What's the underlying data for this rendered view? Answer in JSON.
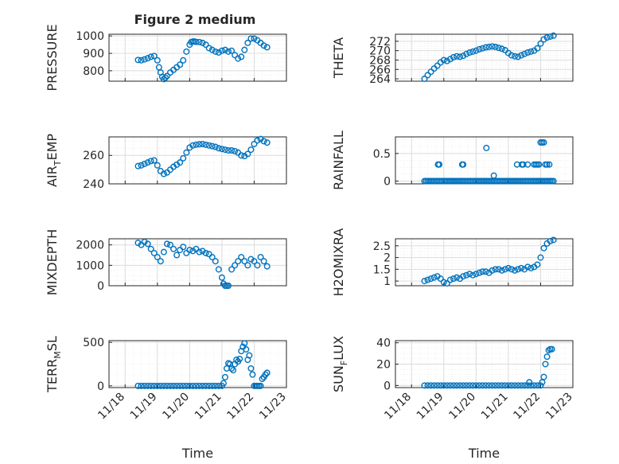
{
  "figure": {
    "title": "Figure 2 medium",
    "marker_color": "#0072bd",
    "grid_color": "#dcdcdc",
    "axis_color": "#262626"
  },
  "chart_data": [
    {
      "type": "scatter",
      "ylabel": "PRESSURE",
      "ylabel_sub": "",
      "ylabel_end": "",
      "xlabel": "",
      "xtick_labels": [],
      "xlim": [
        17.5,
        23
      ],
      "ylim": [
        740,
        1010
      ],
      "yticks": [
        "800",
        "900",
        "1000"
      ],
      "grid": true,
      "minor_grid": true,
      "x": [
        18.4,
        18.5,
        18.6,
        18.7,
        18.8,
        18.9,
        19.0,
        19.05,
        19.1,
        19.15,
        19.2,
        19.25,
        19.3,
        19.4,
        19.5,
        19.6,
        19.7,
        19.8,
        19.9,
        20.0,
        20.05,
        20.1,
        20.15,
        20.2,
        20.3,
        20.4,
        20.5,
        20.6,
        20.7,
        20.8,
        20.9,
        21.0,
        21.1,
        21.2,
        21.3,
        21.4,
        21.5,
        21.6,
        21.7,
        21.8,
        21.9,
        22.0,
        22.1,
        22.2,
        22.3,
        22.4
      ],
      "y": [
        862,
        860,
        865,
        872,
        880,
        885,
        860,
        820,
        790,
        765,
        752,
        760,
        770,
        790,
        805,
        820,
        835,
        860,
        910,
        950,
        965,
        968,
        968,
        966,
        965,
        960,
        950,
        930,
        920,
        910,
        905,
        915,
        920,
        910,
        915,
        890,
        870,
        880,
        920,
        960,
        985,
        985,
        975,
        960,
        945,
        935
      ]
    },
    {
      "type": "scatter",
      "ylabel": "THETA",
      "ylabel_sub": "",
      "ylabel_end": "",
      "xlabel": "",
      "xtick_labels": [],
      "xlim": [
        17.5,
        23
      ],
      "ylim": [
        263.5,
        273.5
      ],
      "yticks": [
        "264",
        "266",
        "268",
        "270",
        "272"
      ],
      "grid": true,
      "minor_grid": true,
      "x": [
        18.4,
        18.5,
        18.6,
        18.7,
        18.8,
        18.9,
        19.0,
        19.1,
        19.2,
        19.3,
        19.4,
        19.5,
        19.6,
        19.7,
        19.8,
        19.9,
        20.0,
        20.1,
        20.2,
        20.3,
        20.4,
        20.5,
        20.6,
        20.7,
        20.8,
        20.9,
        21.0,
        21.1,
        21.2,
        21.3,
        21.4,
        21.5,
        21.6,
        21.7,
        21.8,
        21.9,
        22.0,
        22.1,
        22.2,
        22.3,
        22.4
      ],
      "y": [
        264.0,
        264.8,
        265.5,
        266.2,
        266.8,
        267.5,
        268.0,
        267.8,
        268.2,
        268.6,
        268.8,
        268.7,
        268.9,
        269.3,
        269.6,
        269.8,
        270.0,
        270.3,
        270.5,
        270.7,
        270.8,
        270.9,
        270.8,
        270.6,
        270.4,
        270.1,
        269.5,
        269.0,
        268.8,
        268.7,
        269.0,
        269.3,
        269.6,
        269.8,
        270.0,
        270.5,
        271.5,
        272.4,
        272.8,
        273.0,
        273.2
      ]
    },
    {
      "type": "scatter",
      "ylabel": "AIR",
      "ylabel_sub": "T",
      "ylabel_end": "EMP",
      "xlabel": "",
      "xtick_labels": [],
      "xlim": [
        17.5,
        23
      ],
      "ylim": [
        240,
        273
      ],
      "yticks": [
        "240",
        "260"
      ],
      "grid": true,
      "minor_grid": true,
      "x": [
        18.4,
        18.5,
        18.6,
        18.7,
        18.8,
        18.9,
        19.0,
        19.1,
        19.2,
        19.3,
        19.4,
        19.5,
        19.6,
        19.7,
        19.8,
        19.9,
        20.0,
        20.1,
        20.2,
        20.3,
        20.4,
        20.5,
        20.6,
        20.7,
        20.8,
        20.9,
        21.0,
        21.1,
        21.2,
        21.3,
        21.4,
        21.5,
        21.6,
        21.7,
        21.8,
        21.9,
        22.0,
        22.1,
        22.2,
        22.3,
        22.4
      ],
      "y": [
        252.5,
        253.0,
        254.0,
        255.0,
        256.0,
        256.5,
        253.0,
        249.0,
        247.0,
        248.0,
        250.0,
        252.0,
        253.5,
        255.0,
        258.0,
        262.0,
        265.5,
        267.0,
        267.5,
        267.8,
        268.0,
        267.5,
        267.0,
        266.5,
        266.0,
        265.0,
        264.5,
        264.0,
        263.5,
        263.5,
        263.0,
        262.0,
        260.0,
        259.5,
        261.0,
        264.0,
        268.0,
        270.5,
        271.5,
        270.0,
        269.0
      ]
    },
    {
      "type": "scatter",
      "ylabel": "RAINFALL",
      "ylabel_sub": "",
      "ylabel_end": "",
      "xlabel": "",
      "xtick_labels": [],
      "xlim": [
        17.5,
        23
      ],
      "ylim": [
        -0.05,
        0.8
      ],
      "yticks": [
        "0",
        "0.5"
      ],
      "grid": true,
      "minor_grid": true,
      "x": [
        18.4,
        18.45,
        18.5,
        18.55,
        18.6,
        18.65,
        18.7,
        18.75,
        18.8,
        18.85,
        18.9,
        18.95,
        19.0,
        19.05,
        19.1,
        19.15,
        19.2,
        19.25,
        19.3,
        19.35,
        19.4,
        19.45,
        19.5,
        19.55,
        19.6,
        19.65,
        19.7,
        19.75,
        19.8,
        19.85,
        19.9,
        19.95,
        20.0,
        20.05,
        20.1,
        20.15,
        20.2,
        20.25,
        20.3,
        20.35,
        20.4,
        20.45,
        20.5,
        20.55,
        20.6,
        20.65,
        20.7,
        20.75,
        20.8,
        20.85,
        20.9,
        20.95,
        21.0,
        21.05,
        21.1,
        21.15,
        21.2,
        21.25,
        21.3,
        21.35,
        21.4,
        21.45,
        21.5,
        21.55,
        21.6,
        21.65,
        21.7,
        21.75,
        21.8,
        21.85,
        21.9,
        21.95,
        22.0,
        22.05,
        22.1,
        22.15,
        22.2,
        22.25,
        22.3,
        22.35,
        22.4,
        18.82,
        18.86,
        19.57,
        19.6,
        20.32,
        20.55,
        21.27,
        21.42,
        21.46,
        21.6,
        21.8,
        21.85,
        21.9,
        21.95,
        22.0,
        22.05,
        22.1,
        22.15,
        22.2,
        22.27
      ],
      "y": [
        0,
        0,
        0,
        0,
        0,
        0,
        0,
        0,
        0,
        0,
        0,
        0,
        0,
        0,
        0,
        0,
        0,
        0,
        0,
        0,
        0,
        0,
        0,
        0,
        0,
        0,
        0,
        0,
        0,
        0,
        0,
        0,
        0,
        0,
        0,
        0,
        0,
        0,
        0,
        0,
        0,
        0,
        0,
        0,
        0,
        0,
        0,
        0,
        0,
        0,
        0,
        0,
        0,
        0,
        0,
        0,
        0,
        0,
        0,
        0,
        0,
        0,
        0,
        0,
        0,
        0,
        0,
        0,
        0,
        0,
        0,
        0,
        0,
        0,
        0,
        0,
        0,
        0,
        0,
        0,
        0,
        0.3,
        0.3,
        0.3,
        0.3,
        0.6,
        0.1,
        0.3,
        0.3,
        0.3,
        0.3,
        0.3,
        0.3,
        0.3,
        0.3,
        0.7,
        0.7,
        0.7,
        0.3,
        0.3,
        0.3
      ]
    },
    {
      "type": "scatter",
      "ylabel": "MIXDEPTH",
      "ylabel_sub": "",
      "ylabel_end": "",
      "xlabel": "",
      "xtick_labels": [],
      "xlim": [
        17.5,
        23
      ],
      "ylim": [
        0,
        2300
      ],
      "yticks": [
        "0",
        "1000",
        "2000"
      ],
      "grid": true,
      "minor_grid": true,
      "x": [
        18.4,
        18.5,
        18.6,
        18.7,
        18.8,
        18.9,
        19.0,
        19.1,
        19.2,
        19.3,
        19.4,
        19.5,
        19.6,
        19.7,
        19.8,
        19.9,
        20.0,
        20.1,
        20.2,
        20.3,
        20.4,
        20.5,
        20.6,
        20.7,
        20.8,
        20.9,
        21.0,
        21.05,
        21.1,
        21.15,
        21.2,
        21.3,
        21.4,
        21.5,
        21.6,
        21.7,
        21.8,
        21.9,
        22.0,
        22.1,
        22.2,
        22.3,
        22.4
      ],
      "y": [
        2100,
        2000,
        2150,
        2050,
        1800,
        1600,
        1400,
        1200,
        1650,
        2050,
        2000,
        1800,
        1500,
        1750,
        1900,
        1600,
        1750,
        1700,
        1800,
        1650,
        1700,
        1600,
        1550,
        1400,
        1200,
        800,
        400,
        100,
        0,
        0,
        0,
        800,
        1000,
        1200,
        1400,
        1200,
        1000,
        1300,
        1200,
        1000,
        1400,
        1200,
        950
      ]
    },
    {
      "type": "scatter",
      "ylabel": "H2OMIXRA",
      "ylabel_sub": "",
      "ylabel_end": "",
      "xlabel": "",
      "xtick_labels": [],
      "xlim": [
        17.5,
        23
      ],
      "ylim": [
        0.8,
        2.8
      ],
      "yticks": [
        "1",
        "1.5",
        "2",
        "2.5"
      ],
      "grid": true,
      "minor_grid": true,
      "x": [
        18.4,
        18.5,
        18.6,
        18.7,
        18.8,
        18.9,
        19.0,
        19.1,
        19.2,
        19.3,
        19.4,
        19.5,
        19.6,
        19.7,
        19.8,
        19.9,
        20.0,
        20.1,
        20.2,
        20.3,
        20.4,
        20.5,
        20.6,
        20.7,
        20.8,
        20.9,
        21.0,
        21.1,
        21.2,
        21.3,
        21.4,
        21.5,
        21.6,
        21.7,
        21.8,
        21.9,
        22.0,
        22.1,
        22.2,
        22.3,
        22.4
      ],
      "y": [
        1.0,
        1.05,
        1.1,
        1.15,
        1.2,
        1.1,
        0.95,
        0.9,
        1.05,
        1.1,
        1.15,
        1.1,
        1.2,
        1.25,
        1.3,
        1.25,
        1.3,
        1.35,
        1.4,
        1.4,
        1.35,
        1.45,
        1.5,
        1.5,
        1.45,
        1.5,
        1.55,
        1.5,
        1.45,
        1.5,
        1.55,
        1.5,
        1.6,
        1.55,
        1.6,
        1.7,
        2.0,
        2.4,
        2.6,
        2.7,
        2.75
      ]
    },
    {
      "type": "scatter",
      "ylabel": "TERR",
      "ylabel_sub": "M",
      "ylabel_end": "SL",
      "xlabel": "Time",
      "xtick_labels": [
        "11/18",
        "11/19",
        "11/20",
        "11/21",
        "11/22",
        "11/23"
      ],
      "xticks": [
        18,
        19,
        20,
        21,
        22,
        23
      ],
      "xlim": [
        17.5,
        23
      ],
      "ylim": [
        -20,
        520
      ],
      "yticks": [
        "0",
        "500"
      ],
      "grid": true,
      "minor_grid": true,
      "x": [
        18.4,
        18.5,
        18.6,
        18.7,
        18.8,
        18.9,
        19.0,
        19.1,
        19.2,
        19.3,
        19.4,
        19.5,
        19.6,
        19.7,
        19.8,
        19.9,
        20.0,
        20.1,
        20.2,
        20.3,
        20.4,
        20.5,
        20.6,
        20.7,
        20.8,
        20.9,
        21.0,
        21.05,
        21.1,
        21.15,
        21.2,
        21.25,
        21.3,
        21.35,
        21.4,
        21.45,
        21.5,
        21.55,
        21.6,
        21.65,
        21.7,
        21.75,
        21.8,
        21.85,
        21.9,
        21.95,
        22.0,
        22.05,
        22.1,
        22.15,
        22.2,
        22.25,
        22.3,
        22.35,
        22.4
      ],
      "y": [
        0,
        0,
        0,
        0,
        0,
        0,
        0,
        0,
        0,
        0,
        0,
        0,
        0,
        0,
        0,
        0,
        0,
        0,
        0,
        0,
        0,
        0,
        0,
        0,
        0,
        0,
        0,
        30,
        100,
        200,
        260,
        250,
        200,
        180,
        250,
        300,
        280,
        310,
        400,
        450,
        490,
        420,
        300,
        350,
        200,
        130,
        0,
        0,
        0,
        0,
        0,
        80,
        100,
        130,
        150
      ]
    },
    {
      "type": "scatter",
      "ylabel": "SUN",
      "ylabel_sub": "F",
      "ylabel_end": "LUX",
      "xlabel": "Time",
      "xtick_labels": [
        "11/18",
        "11/19",
        "11/20",
        "11/21",
        "11/22",
        "11/23"
      ],
      "xticks": [
        18,
        19,
        20,
        21,
        22,
        23
      ],
      "xlim": [
        17.5,
        23
      ],
      "ylim": [
        -2,
        42
      ],
      "yticks": [
        "0",
        "20",
        "40"
      ],
      "grid": true,
      "minor_grid": true,
      "x": [
        18.4,
        18.5,
        18.6,
        18.7,
        18.8,
        18.9,
        19.0,
        19.1,
        19.2,
        19.3,
        19.4,
        19.5,
        19.6,
        19.7,
        19.8,
        19.9,
        20.0,
        20.1,
        20.2,
        20.3,
        20.4,
        20.5,
        20.6,
        20.7,
        20.8,
        20.9,
        21.0,
        21.1,
        21.2,
        21.3,
        21.4,
        21.5,
        21.6,
        21.65,
        21.7,
        21.8,
        21.9,
        22.0,
        22.05,
        22.1,
        22.15,
        22.2,
        22.25,
        22.3,
        22.35
      ],
      "y": [
        0,
        0,
        0,
        0,
        0,
        0,
        0,
        0,
        0,
        0,
        0,
        0,
        0,
        0,
        0,
        0,
        0,
        0,
        0,
        0,
        0,
        0,
        0,
        0,
        0,
        0,
        0,
        0,
        0,
        0,
        0,
        0,
        0,
        3,
        0,
        0,
        0,
        0,
        3,
        8,
        20,
        27,
        33,
        34,
        34
      ]
    }
  ]
}
